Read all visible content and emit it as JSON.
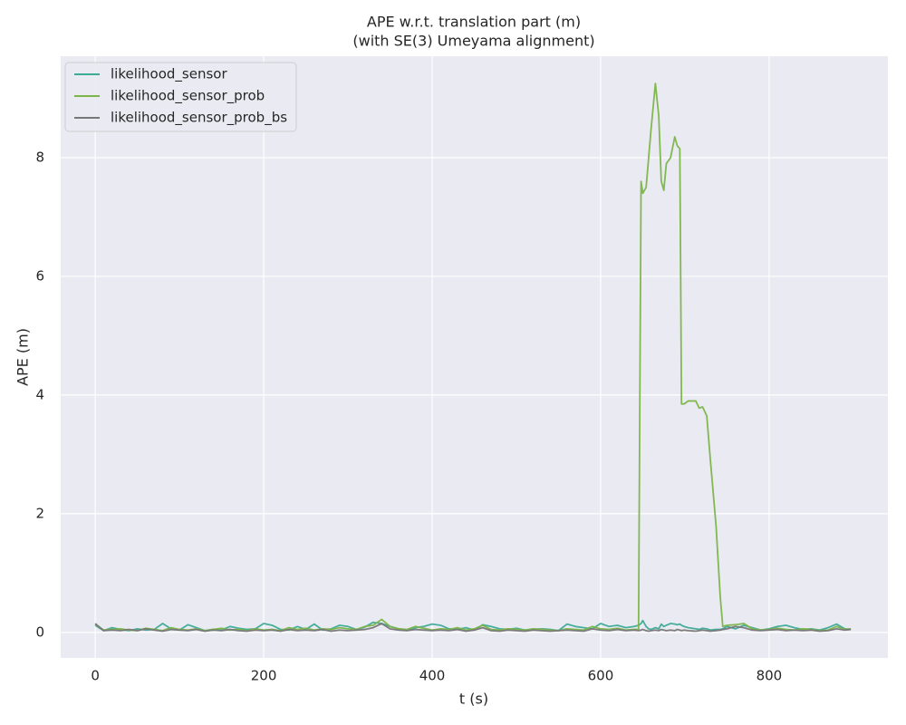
{
  "chart_data": {
    "type": "line",
    "title": "APE w.r.t. translation part (m)",
    "subtitle": "(with SE(3) Umeyama alignment)",
    "xlabel": "t (s)",
    "ylabel": "APE (m)",
    "xlim": [
      -41,
      941
    ],
    "ylim": [
      -0.43,
      9.71
    ],
    "xticks": [
      0,
      200,
      400,
      600,
      800
    ],
    "yticks": [
      0,
      2,
      4,
      6,
      8
    ],
    "grid": true,
    "legend": "upper left",
    "x": [
      0,
      10,
      20,
      30,
      40,
      50,
      60,
      70,
      80,
      90,
      100,
      110,
      120,
      130,
      140,
      150,
      160,
      170,
      180,
      190,
      200,
      210,
      220,
      230,
      240,
      250,
      260,
      270,
      280,
      290,
      300,
      310,
      320,
      330,
      340,
      350,
      360,
      370,
      380,
      390,
      400,
      410,
      420,
      430,
      440,
      450,
      460,
      470,
      480,
      490,
      500,
      510,
      520,
      530,
      540,
      550,
      560,
      570,
      580,
      590,
      600,
      610,
      620,
      630,
      640,
      645,
      648,
      650,
      654,
      657,
      660,
      665,
      669,
      672,
      675,
      678,
      683,
      688,
      691,
      694,
      696,
      699,
      704,
      713,
      717,
      721,
      726,
      730,
      737,
      742,
      745,
      750,
      760,
      770,
      780,
      790,
      800,
      810,
      820,
      830,
      840,
      850,
      860,
      870,
      880,
      890,
      897
    ],
    "series": [
      {
        "name": "likelihood_sensor",
        "color": "#3eab97",
        "values": [
          0.12,
          0.03,
          0.08,
          0.05,
          0.03,
          0.06,
          0.04,
          0.05,
          0.15,
          0.06,
          0.04,
          0.13,
          0.08,
          0.03,
          0.05,
          0.04,
          0.1,
          0.07,
          0.05,
          0.06,
          0.15,
          0.12,
          0.05,
          0.04,
          0.1,
          0.05,
          0.14,
          0.04,
          0.06,
          0.12,
          0.1,
          0.05,
          0.09,
          0.17,
          0.15,
          0.1,
          0.06,
          0.04,
          0.08,
          0.1,
          0.14,
          0.12,
          0.06,
          0.05,
          0.08,
          0.04,
          0.13,
          0.1,
          0.06,
          0.05,
          0.07,
          0.04,
          0.05,
          0.06,
          0.05,
          0.03,
          0.14,
          0.1,
          0.08,
          0.06,
          0.15,
          0.1,
          0.12,
          0.08,
          0.1,
          0.12,
          0.15,
          0.2,
          0.1,
          0.06,
          0.05,
          0.08,
          0.06,
          0.14,
          0.1,
          0.12,
          0.15,
          0.14,
          0.13,
          0.14,
          0.12,
          0.1,
          0.08,
          0.06,
          0.05,
          0.07,
          0.06,
          0.04,
          0.05,
          0.05,
          0.06,
          0.1,
          0.06,
          0.12,
          0.08,
          0.04,
          0.06,
          0.1,
          0.12,
          0.08,
          0.05,
          0.06,
          0.04,
          0.08,
          0.14,
          0.06,
          0.05
        ]
      },
      {
        "name": "likelihood_sensor_prob",
        "color": "#7cb548",
        "values": [
          0.14,
          0.04,
          0.05,
          0.06,
          0.04,
          0.03,
          0.07,
          0.05,
          0.03,
          0.08,
          0.05,
          0.04,
          0.06,
          0.03,
          0.05,
          0.07,
          0.04,
          0.05,
          0.03,
          0.06,
          0.04,
          0.05,
          0.03,
          0.08,
          0.05,
          0.07,
          0.04,
          0.06,
          0.05,
          0.08,
          0.06,
          0.05,
          0.1,
          0.12,
          0.22,
          0.1,
          0.06,
          0.05,
          0.1,
          0.07,
          0.04,
          0.06,
          0.05,
          0.08,
          0.04,
          0.06,
          0.12,
          0.05,
          0.04,
          0.06,
          0.05,
          0.04,
          0.06,
          0.05,
          0.04,
          0.03,
          0.06,
          0.05,
          0.04,
          0.1,
          0.06,
          0.05,
          0.07,
          0.04,
          0.05,
          0.05,
          7.6,
          7.4,
          7.5,
          8.0,
          8.5,
          9.25,
          8.7,
          7.6,
          7.45,
          7.9,
          8.0,
          8.35,
          8.2,
          8.15,
          3.85,
          3.85,
          3.9,
          3.9,
          3.78,
          3.8,
          3.65,
          2.95,
          1.8,
          0.6,
          0.1,
          0.12,
          0.13,
          0.15,
          0.06,
          0.04,
          0.05,
          0.07,
          0.05,
          0.04,
          0.06,
          0.05,
          0.03,
          0.04,
          0.1,
          0.05,
          0.06
        ]
      },
      {
        "name": "likelihood_sensor_prob_bs",
        "color": "#777777",
        "values": [
          0.15,
          0.03,
          0.04,
          0.03,
          0.05,
          0.03,
          0.06,
          0.04,
          0.02,
          0.05,
          0.04,
          0.03,
          0.05,
          0.02,
          0.04,
          0.03,
          0.05,
          0.03,
          0.02,
          0.04,
          0.03,
          0.04,
          0.02,
          0.05,
          0.03,
          0.04,
          0.03,
          0.05,
          0.02,
          0.04,
          0.03,
          0.04,
          0.05,
          0.08,
          0.15,
          0.06,
          0.04,
          0.03,
          0.05,
          0.04,
          0.03,
          0.04,
          0.03,
          0.05,
          0.02,
          0.04,
          0.08,
          0.03,
          0.02,
          0.04,
          0.03,
          0.02,
          0.04,
          0.03,
          0.02,
          0.03,
          0.04,
          0.03,
          0.02,
          0.06,
          0.04,
          0.03,
          0.05,
          0.03,
          0.04,
          0.03,
          0.04,
          0.05,
          0.03,
          0.02,
          0.03,
          0.04,
          0.03,
          0.05,
          0.04,
          0.03,
          0.04,
          0.03,
          0.05,
          0.04,
          0.03,
          0.04,
          0.03,
          0.02,
          0.03,
          0.04,
          0.03,
          0.02,
          0.03,
          0.04,
          0.05,
          0.06,
          0.1,
          0.08,
          0.04,
          0.03,
          0.04,
          0.05,
          0.03,
          0.04,
          0.03,
          0.04,
          0.02,
          0.03,
          0.06,
          0.04,
          0.05
        ]
      }
    ]
  }
}
